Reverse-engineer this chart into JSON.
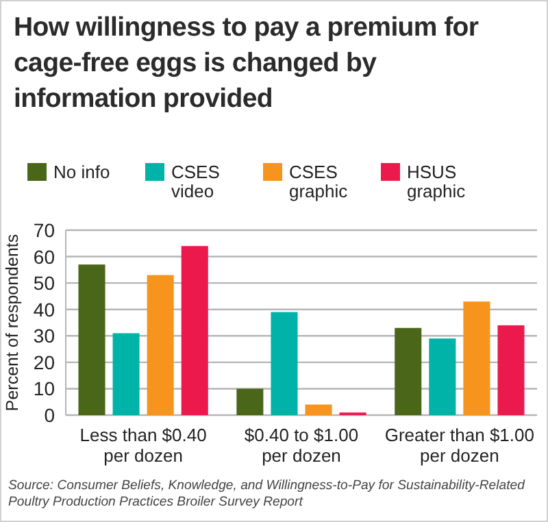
{
  "chart_data": {
    "type": "bar",
    "title": "How willingness to pay a premium for cage-free eggs is changed by information provided",
    "ylabel": "Percent of respondents",
    "categories": [
      "Less than $0.40 per dozen",
      "$0.40 to $1.00 per dozen",
      "Greater than $1.00 per dozen"
    ],
    "series": [
      {
        "name": "No info",
        "color": "#4a6619",
        "values": [
          57,
          10,
          33
        ]
      },
      {
        "name": "CSES video",
        "color": "#00b3a8",
        "values": [
          31,
          39,
          29
        ]
      },
      {
        "name": "CSES graphic",
        "color": "#f7941d",
        "values": [
          53,
          4,
          43
        ]
      },
      {
        "name": "HSUS graphic",
        "color": "#ec1a4c",
        "values": [
          64,
          1,
          34
        ]
      }
    ],
    "ylim": [
      0,
      70
    ],
    "yticks": [
      0,
      10,
      20,
      30,
      40,
      50,
      60,
      70
    ],
    "grid": "y",
    "legend": "top",
    "annotations": [
      "Source: Consumer Beliefs, Knowledge, and Willingness-to-Pay for Sustainability-Related Poultry Production Practices Broiler Survey Report"
    ]
  }
}
